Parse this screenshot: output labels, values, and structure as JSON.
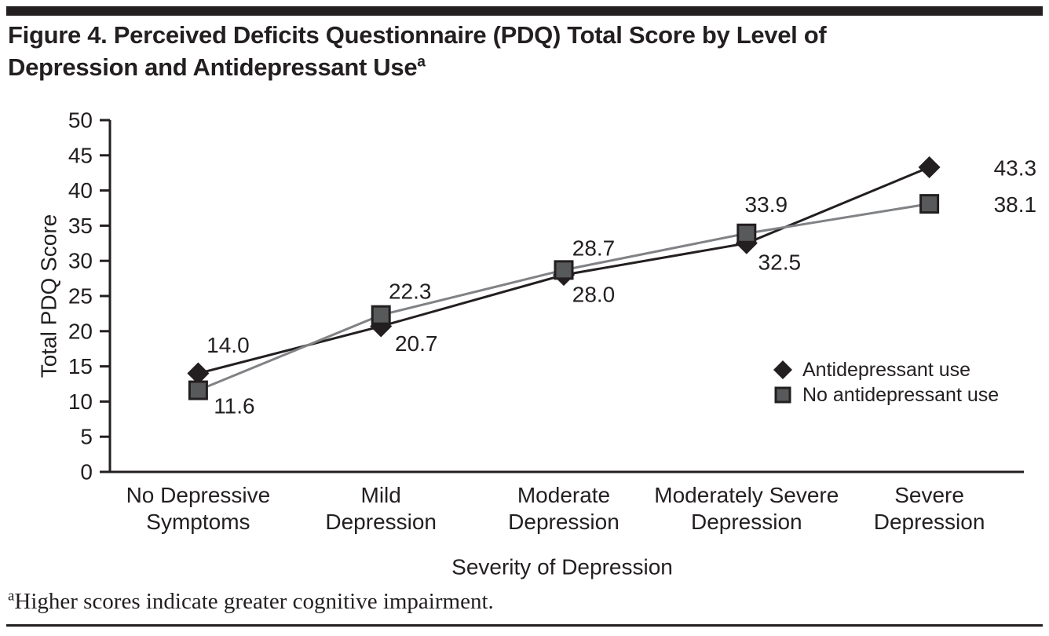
{
  "header": {
    "title": "Figure 4. Perceived Deficits Questionnaire (PDQ) Total Score by Level of Depression and Antidepressant Use",
    "title_superscript": "a",
    "bar_color": "#231f20"
  },
  "chart_data": {
    "type": "line",
    "title": "Perceived Deficits Questionnaire (PDQ) Total Score by Level of Depression and Antidepressant Use",
    "categories": [
      "No Depressive\nSymptoms",
      "Mild\nDepression",
      "Moderate\nDepression",
      "Moderately Severe\nDepression",
      "Severe\nDepression"
    ],
    "series": [
      {
        "name": "Antidepressant use",
        "marker": "diamond",
        "marker_color": "#231f20",
        "line_color": "#231f20",
        "values": [
          14.0,
          20.7,
          28.0,
          32.5,
          43.3
        ],
        "labels": [
          "14.0",
          "20.7",
          "28.0",
          "32.5",
          "43.3"
        ],
        "label_offsets": [
          [
            38,
            -36
          ],
          [
            45,
            22
          ],
          [
            38,
            25
          ],
          [
            42,
            24
          ],
          [
            82,
            1
          ]
        ]
      },
      {
        "name": "No antidepressant use",
        "marker": "square",
        "marker_color": "#58595b",
        "marker_border_color": "#231f20",
        "line_color": "#808285",
        "values": [
          11.6,
          22.3,
          28.7,
          33.9,
          38.1
        ],
        "labels": [
          "11.6",
          "22.3",
          "28.7",
          "33.9",
          "38.1"
        ],
        "label_offsets": [
          [
            46,
            20
          ],
          [
            37,
            -30
          ],
          [
            38,
            -28
          ],
          [
            25,
            -37
          ],
          [
            82,
            1
          ]
        ]
      }
    ],
    "xlabel": "Severity of Depression",
    "ylabel": "Total PDQ Score",
    "ylim": [
      0,
      50
    ],
    "ytick_step": 5,
    "grid": false,
    "legend_position": "right-middle",
    "axis_color": "#231f20",
    "text_color": "#231f20"
  },
  "footnote": {
    "superscript": "a",
    "text": "Higher scores indicate greater cognitive impairment."
  }
}
